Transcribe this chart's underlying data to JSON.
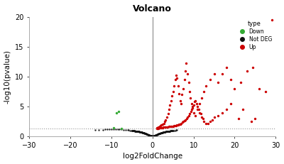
{
  "title": "Volcano",
  "xlabel": "log2FoldChange",
  "ylabel": "-log10(pvalue)",
  "xlim": [
    -30,
    30
  ],
  "ylim": [
    0,
    20
  ],
  "hline_y": 1.3,
  "background_color": "#ffffff",
  "up_color": "#cc0000",
  "down_color": "#33aa33",
  "notdeg_color": "#111111",
  "up_points": [
    [
      1.0,
      1.4
    ],
    [
      1.2,
      1.5
    ],
    [
      1.5,
      1.6
    ],
    [
      1.8,
      1.7
    ],
    [
      2.0,
      1.8
    ],
    [
      2.2,
      1.9
    ],
    [
      2.5,
      2.0
    ],
    [
      2.8,
      2.2
    ],
    [
      3.0,
      2.5
    ],
    [
      3.2,
      2.8
    ],
    [
      3.5,
      3.2
    ],
    [
      3.8,
      3.8
    ],
    [
      4.0,
      4.5
    ],
    [
      4.2,
      5.2
    ],
    [
      4.5,
      6.0
    ],
    [
      4.8,
      6.8
    ],
    [
      5.0,
      7.5
    ],
    [
      5.2,
      8.5
    ],
    [
      5.5,
      9.5
    ],
    [
      5.8,
      10.2
    ],
    [
      6.0,
      9.8
    ],
    [
      6.2,
      8.5
    ],
    [
      6.5,
      7.2
    ],
    [
      6.8,
      6.0
    ],
    [
      7.0,
      5.5
    ],
    [
      7.2,
      7.0
    ],
    [
      7.5,
      8.0
    ],
    [
      7.8,
      9.5
    ],
    [
      8.0,
      11.0
    ],
    [
      8.2,
      12.3
    ],
    [
      8.5,
      10.5
    ],
    [
      8.8,
      9.0
    ],
    [
      9.0,
      7.5
    ],
    [
      9.2,
      6.5
    ],
    [
      9.5,
      5.5
    ],
    [
      9.8,
      4.8
    ],
    [
      10.0,
      4.0
    ],
    [
      10.5,
      3.5
    ],
    [
      11.0,
      4.5
    ],
    [
      11.5,
      5.5
    ],
    [
      12.0,
      6.5
    ],
    [
      12.5,
      7.5
    ],
    [
      13.0,
      8.5
    ],
    [
      14.0,
      9.5
    ],
    [
      15.0,
      10.5
    ],
    [
      16.0,
      9.0
    ],
    [
      17.0,
      10.5
    ],
    [
      18.0,
      11.5
    ],
    [
      19.0,
      9.5
    ],
    [
      20.0,
      8.0
    ],
    [
      21.5,
      9.0
    ],
    [
      23.0,
      11.0
    ],
    [
      24.5,
      11.5
    ],
    [
      26.0,
      8.0
    ],
    [
      27.5,
      7.5
    ],
    [
      29.0,
      19.5
    ],
    [
      1.3,
      1.38
    ],
    [
      1.6,
      1.42
    ],
    [
      2.0,
      1.45
    ],
    [
      2.5,
      1.5
    ],
    [
      3.0,
      1.55
    ],
    [
      3.5,
      1.6
    ],
    [
      4.0,
      1.65
    ],
    [
      4.5,
      1.7
    ],
    [
      5.0,
      1.75
    ],
    [
      5.5,
      1.8
    ],
    [
      6.0,
      1.9
    ],
    [
      6.5,
      2.0
    ],
    [
      7.0,
      2.2
    ],
    [
      7.5,
      2.5
    ],
    [
      8.0,
      2.8
    ],
    [
      8.5,
      3.2
    ],
    [
      9.0,
      3.8
    ],
    [
      9.5,
      4.5
    ],
    [
      10.0,
      5.2
    ],
    [
      10.5,
      6.0
    ],
    [
      11.0,
      5.0
    ],
    [
      11.5,
      4.0
    ],
    [
      12.0,
      3.2
    ],
    [
      12.5,
      2.5
    ],
    [
      13.5,
      2.2
    ],
    [
      14.5,
      2.8
    ],
    [
      16.0,
      3.5
    ],
    [
      18.0,
      4.5
    ],
    [
      21.0,
      3.0
    ],
    [
      24.0,
      2.5
    ],
    [
      1.1,
      1.35
    ],
    [
      1.4,
      1.37
    ],
    [
      1.7,
      1.4
    ],
    [
      2.1,
      1.43
    ],
    [
      2.4,
      1.48
    ],
    [
      2.7,
      1.52
    ],
    [
      3.2,
      1.57
    ],
    [
      3.6,
      1.62
    ],
    [
      4.2,
      1.68
    ],
    [
      4.7,
      1.72
    ],
    [
      5.3,
      1.78
    ],
    [
      5.8,
      1.85
    ],
    [
      6.3,
      1.95
    ],
    [
      6.8,
      2.1
    ],
    [
      7.3,
      2.35
    ],
    [
      7.8,
      2.65
    ],
    [
      8.3,
      3.0
    ],
    [
      8.8,
      3.5
    ],
    [
      9.3,
      4.2
    ],
    [
      9.8,
      5.0
    ],
    [
      10.3,
      5.8
    ],
    [
      10.8,
      5.5
    ],
    [
      11.3,
      4.5
    ],
    [
      11.8,
      3.8
    ],
    [
      12.3,
      3.0
    ],
    [
      13.0,
      2.2
    ],
    [
      14.0,
      2.5
    ],
    [
      15.0,
      3.2
    ],
    [
      17.0,
      4.0
    ],
    [
      19.0,
      5.5
    ],
    [
      22.0,
      4.5
    ],
    [
      25.0,
      3.0
    ]
  ],
  "down_points": [
    [
      -8.2,
      4.2
    ],
    [
      -8.8,
      3.9
    ],
    [
      -9.5,
      1.45
    ],
    [
      -7.5,
      1.35
    ]
  ],
  "notdeg_points": [
    [
      -0.5,
      0.08
    ],
    [
      -0.3,
      0.12
    ],
    [
      -0.1,
      0.05
    ],
    [
      0.0,
      0.02
    ],
    [
      0.1,
      0.06
    ],
    [
      0.3,
      0.1
    ],
    [
      0.5,
      0.15
    ],
    [
      -0.8,
      0.2
    ],
    [
      -0.6,
      0.18
    ],
    [
      -0.4,
      0.14
    ],
    [
      -0.2,
      0.09
    ],
    [
      0.2,
      0.08
    ],
    [
      0.4,
      0.13
    ],
    [
      0.6,
      0.17
    ],
    [
      0.8,
      0.22
    ],
    [
      -1.2,
      0.32
    ],
    [
      -1.0,
      0.28
    ],
    [
      -0.9,
      0.25
    ],
    [
      0.9,
      0.26
    ],
    [
      1.0,
      0.3
    ],
    [
      1.2,
      0.35
    ],
    [
      -1.5,
      0.42
    ],
    [
      -1.3,
      0.38
    ],
    [
      1.3,
      0.38
    ],
    [
      1.5,
      0.45
    ],
    [
      -2.0,
      0.55
    ],
    [
      -1.8,
      0.5
    ],
    [
      -1.6,
      0.46
    ],
    [
      1.6,
      0.47
    ],
    [
      1.8,
      0.52
    ],
    [
      2.0,
      0.58
    ],
    [
      -2.5,
      0.65
    ],
    [
      -2.3,
      0.62
    ],
    [
      -2.1,
      0.6
    ],
    [
      2.1,
      0.6
    ],
    [
      2.3,
      0.63
    ],
    [
      2.5,
      0.68
    ],
    [
      -3.0,
      0.75
    ],
    [
      -2.8,
      0.72
    ],
    [
      -2.6,
      0.7
    ],
    [
      2.6,
      0.71
    ],
    [
      2.8,
      0.74
    ],
    [
      3.0,
      0.78
    ],
    [
      -3.5,
      0.83
    ],
    [
      -3.2,
      0.8
    ],
    [
      3.2,
      0.81
    ],
    [
      3.5,
      0.85
    ],
    [
      -4.0,
      0.88
    ],
    [
      -3.8,
      0.86
    ],
    [
      3.8,
      0.87
    ],
    [
      4.0,
      0.9
    ],
    [
      -4.5,
      0.93
    ],
    [
      -4.2,
      0.91
    ],
    [
      4.2,
      0.92
    ],
    [
      4.5,
      0.95
    ],
    [
      -5.0,
      0.97
    ],
    [
      -4.8,
      0.95
    ],
    [
      4.8,
      0.96
    ],
    [
      5.0,
      0.98
    ],
    [
      -5.5,
      1.02
    ],
    [
      -5.2,
      1.0
    ],
    [
      5.2,
      1.0
    ],
    [
      5.5,
      1.03
    ],
    [
      -6.0,
      1.06
    ],
    [
      -5.8,
      1.04
    ],
    [
      5.8,
      1.05
    ],
    [
      6.0,
      1.08
    ],
    [
      -6.5,
      1.1
    ],
    [
      -7.0,
      1.14
    ],
    [
      -7.5,
      1.17
    ],
    [
      -8.0,
      1.2
    ],
    [
      -8.5,
      1.22
    ],
    [
      -9.0,
      1.24
    ],
    [
      -9.5,
      1.26
    ],
    [
      -10.0,
      1.27
    ],
    [
      -10.5,
      1.25
    ],
    [
      -11.0,
      1.22
    ],
    [
      -11.5,
      1.18
    ],
    [
      -12.0,
      1.15
    ],
    [
      -13.0,
      1.1
    ],
    [
      -14.0,
      1.05
    ],
    [
      0.05,
      0.01
    ],
    [
      -0.05,
      0.03
    ],
    [
      0.15,
      0.04
    ],
    [
      -0.15,
      0.06
    ],
    [
      0.25,
      0.07
    ],
    [
      -0.25,
      0.09
    ],
    [
      0.35,
      0.11
    ],
    [
      -0.35,
      0.12
    ],
    [
      0.45,
      0.14
    ],
    [
      -0.45,
      0.15
    ],
    [
      0.55,
      0.16
    ],
    [
      -0.55,
      0.17
    ],
    [
      0.65,
      0.19
    ],
    [
      -0.65,
      0.2
    ],
    [
      0.75,
      0.21
    ],
    [
      -0.75,
      0.23
    ],
    [
      0.85,
      0.24
    ],
    [
      -0.85,
      0.25
    ],
    [
      0.95,
      0.27
    ],
    [
      -0.95,
      0.28
    ],
    [
      1.05,
      0.31
    ],
    [
      -1.05,
      0.32
    ],
    [
      1.15,
      0.33
    ],
    [
      -1.15,
      0.34
    ],
    [
      1.25,
      0.36
    ],
    [
      -1.25,
      0.37
    ],
    [
      1.35,
      0.39
    ],
    [
      -1.35,
      0.4
    ],
    [
      1.45,
      0.43
    ],
    [
      -1.45,
      0.44
    ],
    [
      1.55,
      0.46
    ],
    [
      -1.55,
      0.47
    ],
    [
      1.65,
      0.49
    ],
    [
      -1.65,
      0.5
    ],
    [
      1.75,
      0.51
    ],
    [
      -1.75,
      0.52
    ],
    [
      1.85,
      0.53
    ],
    [
      -1.85,
      0.54
    ],
    [
      1.95,
      0.56
    ],
    [
      -1.95,
      0.57
    ],
    [
      2.05,
      0.59
    ],
    [
      -2.05,
      0.6
    ],
    [
      2.15,
      0.61
    ],
    [
      -2.15,
      0.62
    ],
    [
      2.25,
      0.64
    ],
    [
      -2.25,
      0.65
    ],
    [
      2.35,
      0.66
    ],
    [
      -2.35,
      0.67
    ],
    [
      2.45,
      0.67
    ],
    [
      -2.45,
      0.68
    ],
    [
      2.55,
      0.69
    ],
    [
      -2.55,
      0.7
    ],
    [
      2.65,
      0.71
    ],
    [
      -2.65,
      0.72
    ],
    [
      2.75,
      0.73
    ],
    [
      -2.75,
      0.74
    ],
    [
      2.85,
      0.75
    ],
    [
      -2.85,
      0.76
    ],
    [
      2.95,
      0.77
    ],
    [
      -2.95,
      0.78
    ],
    [
      3.05,
      0.79
    ],
    [
      -3.05,
      0.79
    ],
    [
      3.15,
      0.8
    ],
    [
      -3.15,
      0.81
    ],
    [
      3.25,
      0.82
    ],
    [
      -3.25,
      0.82
    ],
    [
      3.35,
      0.83
    ],
    [
      -3.35,
      0.84
    ],
    [
      3.45,
      0.85
    ],
    [
      -3.45,
      0.85
    ],
    [
      3.55,
      0.86
    ],
    [
      -3.55,
      0.86
    ],
    [
      3.65,
      0.87
    ],
    [
      -3.65,
      0.87
    ],
    [
      3.75,
      0.88
    ],
    [
      -3.75,
      0.88
    ],
    [
      3.85,
      0.89
    ],
    [
      -3.85,
      0.89
    ],
    [
      3.95,
      0.9
    ],
    [
      -3.95,
      0.9
    ],
    [
      4.05,
      0.9
    ],
    [
      -4.05,
      0.91
    ],
    [
      4.15,
      0.91
    ],
    [
      -4.15,
      0.92
    ],
    [
      4.25,
      0.92
    ],
    [
      -4.25,
      0.92
    ],
    [
      4.35,
      0.93
    ],
    [
      -4.35,
      0.93
    ],
    [
      4.45,
      0.94
    ],
    [
      -4.45,
      0.94
    ],
    [
      4.55,
      0.94
    ],
    [
      -4.55,
      0.95
    ],
    [
      4.65,
      0.95
    ],
    [
      -4.65,
      0.95
    ],
    [
      4.75,
      0.96
    ],
    [
      -4.75,
      0.96
    ],
    [
      4.85,
      0.96
    ],
    [
      -4.85,
      0.97
    ],
    [
      4.95,
      0.97
    ],
    [
      -4.95,
      0.97
    ]
  ],
  "legend_title": "type",
  "legend_items": [
    "Down",
    "Not DEG",
    "Up"
  ],
  "legend_colors": [
    "#33aa33",
    "#111111",
    "#cc0000"
  ],
  "marker_size_up": 6,
  "marker_size_down": 6,
  "marker_size_notdeg": 3,
  "dotted_line_color": "#999999",
  "vline_color": "#888888",
  "spine_color": "#aaaaaa"
}
